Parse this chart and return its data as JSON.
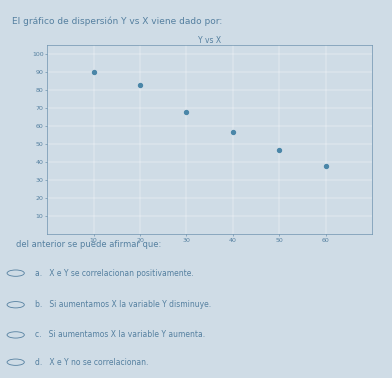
{
  "title": "Y vs X",
  "header_text": "El gráfico de dispersión Y vs X viene dado por:",
  "footer_text": "del anterior se puede afirmar que:",
  "options": [
    "a.   X e Y se correlacionan positivamente.",
    "b.   Si aumentamos X la variable Y disminuye.",
    "c.   Si aumentamos X la variable Y aumenta.",
    "d.   X e Y no se correlacionan."
  ],
  "x_data": [
    10,
    20,
    30,
    40,
    50,
    60
  ],
  "y_data": [
    90,
    83,
    68,
    57,
    47,
    38
  ],
  "xlim": [
    0,
    70
  ],
  "ylim": [
    0,
    105
  ],
  "x_ticks": [
    10,
    20,
    30,
    40,
    50,
    60
  ],
  "y_ticks": [
    10,
    20,
    30,
    40,
    50,
    60,
    70,
    80,
    90,
    100
  ],
  "dot_color": "#4a86a8",
  "bg_color": "#cfdce6",
  "text_color": "#5580a0",
  "font_size_header": 6.5,
  "font_size_title": 5.5,
  "font_size_ticks": 4.5,
  "font_size_footer": 6.0,
  "font_size_options": 5.5,
  "dot_size": 8
}
